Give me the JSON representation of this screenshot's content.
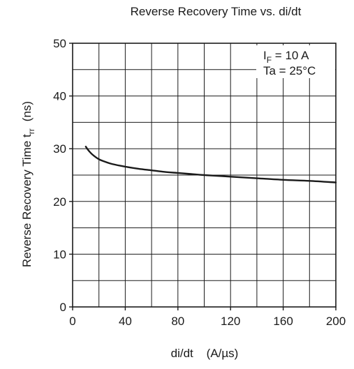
{
  "chart_data": {
    "type": "line",
    "title": "Reverse Recovery Time vs. di/dt",
    "xlabel": "di/dt    (A/µs)",
    "ylabel": {
      "main": "Reverse Recovery Time  t",
      "subscript": "rr",
      "unit": "(ns)"
    },
    "xlim": [
      0,
      200
    ],
    "ylim": [
      0,
      50
    ],
    "x_ticks": [
      "0",
      "40",
      "80",
      "120",
      "160",
      "200"
    ],
    "y_ticks": [
      "0",
      "10",
      "20",
      "30",
      "40",
      "50"
    ],
    "grid": true,
    "annotations": {
      "condition_1": {
        "symbol": "I",
        "subscript": "F",
        "rest": " = 10 A"
      },
      "condition_2": "Ta = 25°C"
    },
    "series": [
      {
        "x": [
          10,
          12,
          15,
          20,
          25,
          30,
          40,
          50,
          60,
          70,
          80,
          90,
          100,
          120,
          140,
          160,
          180,
          200
        ],
        "y": [
          30.4,
          29.7,
          28.9,
          28.0,
          27.5,
          27.1,
          26.6,
          26.2,
          25.9,
          25.6,
          25.4,
          25.2,
          25.0,
          24.7,
          24.4,
          24.1,
          23.9,
          23.6
        ]
      }
    ],
    "colors": {
      "line": "#1a1a1a",
      "grid": "#1a1a1a"
    }
  }
}
